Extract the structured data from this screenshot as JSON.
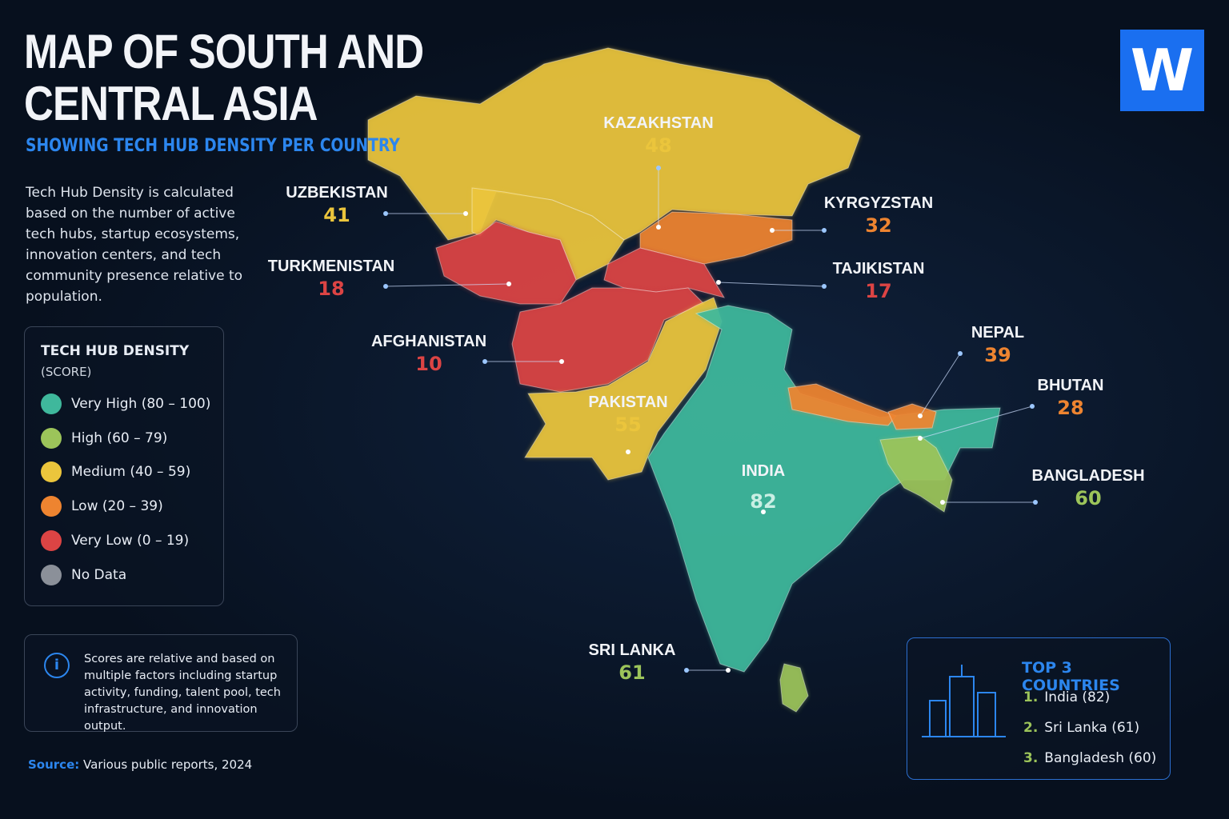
{
  "header": {
    "title": [
      "MAP OF SOUTH AND",
      "CENTRAL ASIA"
    ],
    "subtitle": "SHOWING TECH HUB DENSITY PER COUNTRY",
    "description": "Tech Hub Density is calculated based on the number of active tech hubs, startup ecosystems, innovation centers, and tech community presence relative to population.",
    "logo": "W"
  },
  "legend": {
    "title": "TECH HUB DENSITY",
    "subtitle": "(SCORE)",
    "items": [
      {
        "label": "Very High (80 – 100)",
        "color": "#3fb89c"
      },
      {
        "label": "High (60 – 79)",
        "color": "#9cc45a"
      },
      {
        "label": "Medium (40 – 59)",
        "color": "#ebc53c"
      },
      {
        "label": "Low (20 – 39)",
        "color": "#ee8430"
      },
      {
        "label": "Very Low  (0 – 19)",
        "color": "#dc4444"
      },
      {
        "label": "No Data",
        "color": "#8b9099"
      }
    ]
  },
  "countries": [
    {
      "name": "KAZAKHSTAN",
      "score": 48,
      "color": "#ebc53c"
    },
    {
      "name": "UZBEKISTAN",
      "score": 41,
      "color": "#ebc53c"
    },
    {
      "name": "TURKMENISTAN",
      "score": 18,
      "color": "#dc4444"
    },
    {
      "name": "KYRGYZSTAN",
      "score": 32,
      "color": "#ee8430"
    },
    {
      "name": "TAJIKISTAN",
      "score": 17,
      "color": "#dc4444"
    },
    {
      "name": "AFGHANISTAN",
      "score": 10,
      "color": "#dc4444"
    },
    {
      "name": "PAKISTAN",
      "score": 55,
      "color": "#ebc53c"
    },
    {
      "name": "INDIA",
      "score": 82,
      "color": "#3fb89c"
    },
    {
      "name": "NEPAL",
      "score": 39,
      "color": "#ee8430"
    },
    {
      "name": "BHUTAN",
      "score": 28,
      "color": "#ee8430"
    },
    {
      "name": "BANGLADESH",
      "score": 60,
      "color": "#9cc45a"
    },
    {
      "name": "SRI LANKA",
      "score": 61,
      "color": "#9cc45a"
    }
  ],
  "note": "Scores are relative and based on multiple factors including startup activity, funding, talent pool, tech infrastructure, and innovation output.",
  "source": {
    "label": "Source:",
    "text": "Various public reports, 2024"
  },
  "top": {
    "title": "TOP 3 COUNTRIES",
    "items": [
      {
        "rank": "1.",
        "text": "India (82)"
      },
      {
        "rank": "2.",
        "text": "Sri Lanka (61)"
      },
      {
        "rank": "3.",
        "text": "Bangladesh (60)"
      }
    ]
  }
}
